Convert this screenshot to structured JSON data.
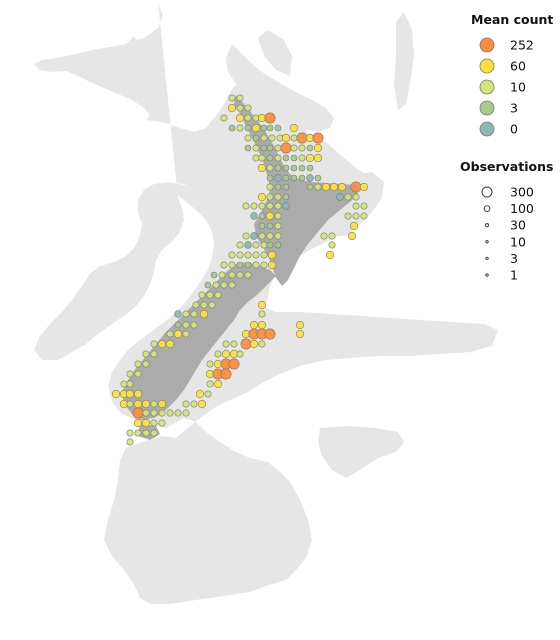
{
  "colors": {
    "background": "#ffffff",
    "seafloor": "#e6e6e6",
    "land": "#ababab",
    "symbol_stroke": "#7a7a7a"
  },
  "legend": {
    "mean_count": {
      "title": "Mean count",
      "items": [
        {
          "label": "252",
          "value": 252,
          "color": "#fc8d3c"
        },
        {
          "label": "60",
          "value": 60,
          "color": "#fde03a"
        },
        {
          "label": "10",
          "value": 10,
          "color": "#d2e678"
        },
        {
          "label": "3",
          "value": 3,
          "color": "#a9c98b"
        },
        {
          "label": "0",
          "value": 0,
          "color": "#8bb8b4"
        }
      ]
    },
    "observations": {
      "title": "Observations",
      "items": [
        {
          "label": "300",
          "value": 300
        },
        {
          "label": "100",
          "value": 100
        },
        {
          "label": "30",
          "value": 30
        },
        {
          "label": "10",
          "value": 10
        },
        {
          "label": "3",
          "value": 3
        },
        {
          "label": "1",
          "value": 1
        }
      ]
    }
  }
}
